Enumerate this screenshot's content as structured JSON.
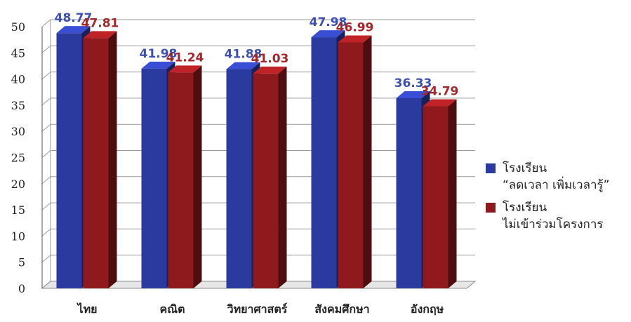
{
  "chart_data": {
    "type": "bar",
    "categories": [
      "ไทย",
      "คณิต",
      "วิทยาศาสตร์",
      "สังคมศึกษา",
      "อังกฤษ"
    ],
    "series": [
      {
        "name_lines": [
          "โรงเรียน",
          "“ลดเวลา เพิ่มเวลารู้”"
        ],
        "color": "#2b3a9e",
        "label_color": "#3d4fb0",
        "values": [
          48.77,
          41.98,
          41.88,
          47.98,
          36.33
        ],
        "labels": [
          "48.77",
          "41.98",
          "41.88",
          "47.98",
          "36.33"
        ]
      },
      {
        "name_lines": [
          "โรงเรียน",
          "ไม่เข้าร่วมโครงการ"
        ],
        "color": "#8e1a1d",
        "label_color": "#a3262a",
        "values": [
          47.81,
          41.24,
          41.03,
          46.99,
          34.79
        ],
        "labels": [
          "47.81",
          "41.24",
          "41.03",
          "46.99",
          "34.79"
        ]
      }
    ],
    "ylim": [
      0,
      50
    ],
    "yticks": [
      0,
      5,
      10,
      15,
      20,
      25,
      30,
      35,
      40,
      45,
      50
    ],
    "grid": true,
    "legend_position": "right"
  }
}
